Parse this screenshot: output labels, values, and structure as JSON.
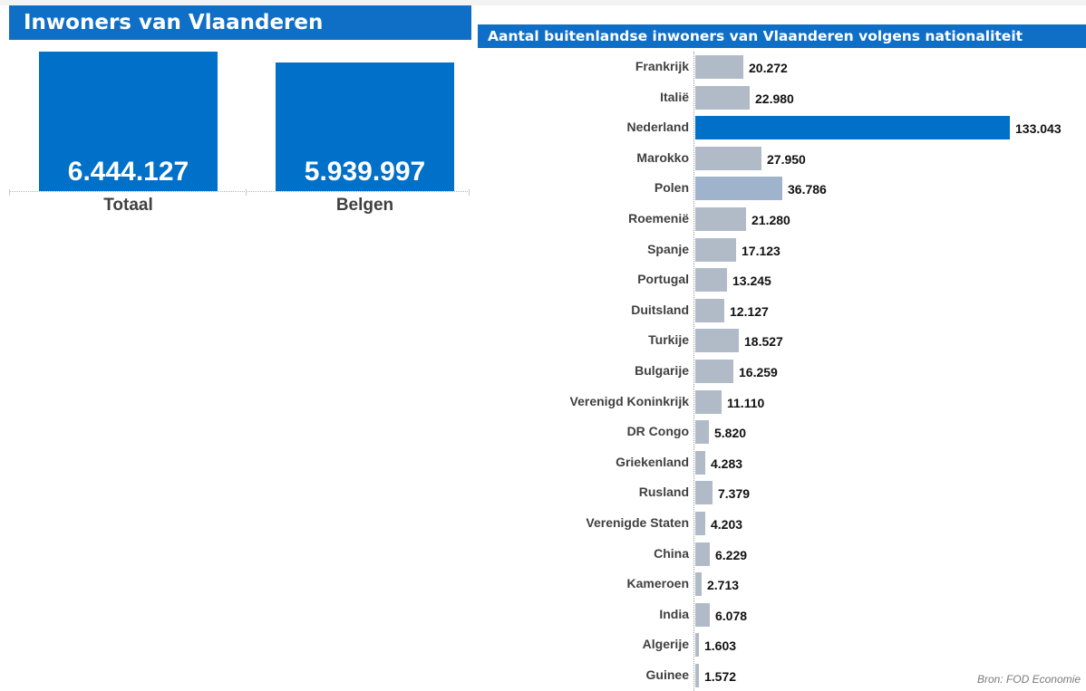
{
  "left_panel": {
    "title": "Inwoners van Vlaanderen"
  },
  "right_panel": {
    "title": "Aantal buitenlandse inwoners van Vlaanderen volgens nationaliteit"
  },
  "source": "Bron: FOD Economie",
  "colors": {
    "header": "#0f6fc6",
    "highlight_bar": "#0070c8",
    "default_bar": "#b1bbc8",
    "secondary_bar": "#9fb4cc"
  },
  "chart_data": [
    {
      "type": "bar",
      "orientation": "vertical",
      "title": "Inwoners van Vlaanderen",
      "categories": [
        "Totaal",
        "Belgen"
      ],
      "values": [
        6444127,
        5939997
      ],
      "value_labels": [
        "6.444.127",
        "5.939.997"
      ],
      "ylim": [
        0,
        6444127
      ]
    },
    {
      "type": "bar",
      "orientation": "horizontal",
      "title": "Aantal buitenlandse inwoners van Vlaanderen volgens nationaliteit",
      "categories": [
        "Frankrijk",
        "Italië",
        "Nederland",
        "Marokko",
        "Polen",
        "Roemenië",
        "Spanje",
        "Portugal",
        "Duitsland",
        "Turkije",
        "Bulgarije",
        "Verenigd Koninkrijk",
        "DR Congo",
        "Griekenland",
        "Rusland",
        "Verenigde Staten",
        "China",
        "Kameroen",
        "India",
        "Algerije",
        "Guinee"
      ],
      "values": [
        20272,
        22980,
        133043,
        27950,
        36786,
        21280,
        17123,
        13245,
        12127,
        18527,
        16259,
        11110,
        5820,
        4283,
        7379,
        4203,
        6229,
        2713,
        6078,
        1603,
        1572
      ],
      "value_labels": [
        "20.272",
        "22.980",
        "133.043",
        "27.950",
        "36.786",
        "21.280",
        "17.123",
        "13.245",
        "12.127",
        "18.527",
        "16.259",
        "11.110",
        "5.820",
        "4.283",
        "7.379",
        "4.203",
        "6.229",
        "2.713",
        "6.078",
        "1.603",
        "1.572"
      ],
      "highlighted": [
        "Nederland"
      ],
      "secondary": [
        "Polen"
      ],
      "xlim": [
        0,
        133043
      ],
      "grid": false
    }
  ]
}
